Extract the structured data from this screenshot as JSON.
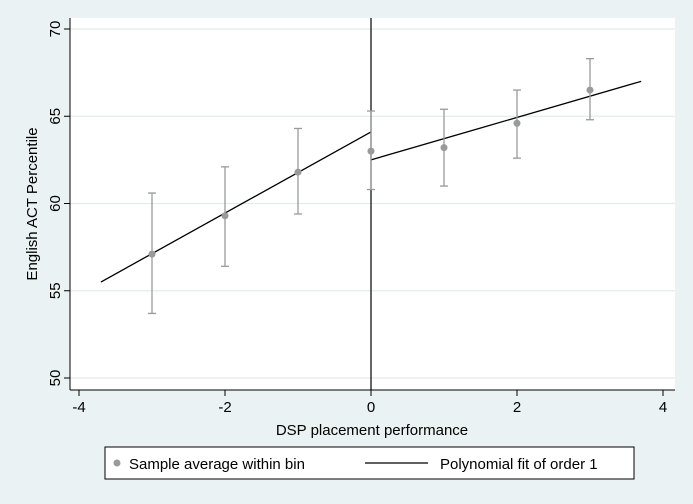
{
  "chart_data": {
    "type": "scatter",
    "title": "",
    "xlabel": "DSP placement performance",
    "ylabel": "English ACT Percentile",
    "xlim": [
      -4,
      4
    ],
    "ylim": [
      50,
      70
    ],
    "xticks": [
      -4,
      -2,
      0,
      2,
      4
    ],
    "yticks": [
      50,
      55,
      60,
      65,
      70
    ],
    "xtick_labels": [
      "-4",
      "-2",
      "0",
      "2",
      "4"
    ],
    "ytick_labels": [
      "50",
      "55",
      "60",
      "65",
      "70"
    ],
    "grid": true,
    "cutoff": 0,
    "series": [
      {
        "name": "Sample average within bin",
        "type": "scatter_errorbar",
        "color": "#9a9a9a",
        "points": [
          {
            "x": -3,
            "y": 57.1,
            "lo": 53.7,
            "hi": 60.6
          },
          {
            "x": -2,
            "y": 59.3,
            "lo": 56.4,
            "hi": 62.1
          },
          {
            "x": -1,
            "y": 61.8,
            "lo": 59.4,
            "hi": 64.3
          },
          {
            "x": 0,
            "y": 63.0,
            "lo": 60.8,
            "hi": 65.3
          },
          {
            "x": 1,
            "y": 63.2,
            "lo": 61.0,
            "hi": 65.4
          },
          {
            "x": 2,
            "y": 64.6,
            "lo": 62.6,
            "hi": 66.5
          },
          {
            "x": 3,
            "y": 66.5,
            "lo": 64.8,
            "hi": 68.3
          }
        ]
      },
      {
        "name": "Polynomial fit of order 1",
        "type": "line",
        "color": "#000000",
        "segments": [
          {
            "x": [
              -3.7,
              0
            ],
            "y": [
              55.5,
              64.1
            ]
          },
          {
            "x": [
              0,
              3.7
            ],
            "y": [
              62.5,
              67.0
            ]
          }
        ]
      }
    ],
    "legend": {
      "position": "bottom",
      "items": [
        "Sample average within bin",
        "Polynomial fit of order 1"
      ]
    }
  }
}
